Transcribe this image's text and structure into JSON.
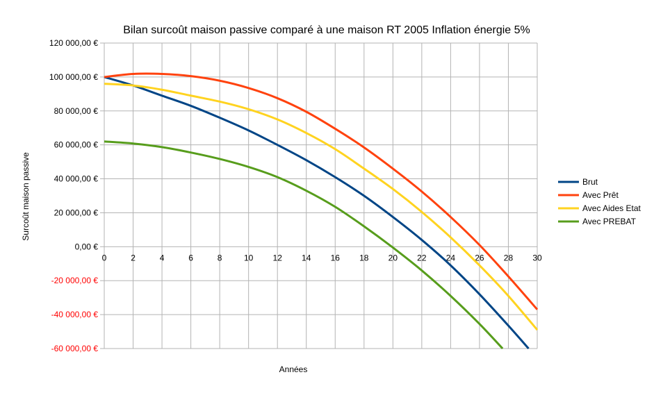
{
  "chart_data": {
    "type": "line",
    "title": "Bilan surcoût maison passive comparé à une maison RT 2005 Inflation énergie 5%",
    "xlabel": "Années",
    "ylabel": "Surcoût maison passive",
    "xlim": [
      0,
      30
    ],
    "ylim": [
      -60000,
      120000
    ],
    "x_ticks": [
      "0",
      "2",
      "4",
      "6",
      "8",
      "10",
      "12",
      "14",
      "16",
      "18",
      "20",
      "22",
      "24",
      "26",
      "28",
      "30"
    ],
    "y_ticks": [
      {
        "value": 120000,
        "label": "120 000,00 €",
        "color": "#000000"
      },
      {
        "value": 100000,
        "label": "100 000,00 €",
        "color": "#000000"
      },
      {
        "value": 80000,
        "label": "80 000,00 €",
        "color": "#000000"
      },
      {
        "value": 60000,
        "label": "60 000,00 €",
        "color": "#000000"
      },
      {
        "value": 40000,
        "label": "40 000,00 €",
        "color": "#000000"
      },
      {
        "value": 20000,
        "label": "20 000,00 €",
        "color": "#000000"
      },
      {
        "value": 0,
        "label": "0,00 €",
        "color": "#000000"
      },
      {
        "value": -20000,
        "label": "-20 000,00 €",
        "color": "#ff0000"
      },
      {
        "value": -40000,
        "label": "-40 000,00 €",
        "color": "#ff0000"
      },
      {
        "value": -60000,
        "label": "-60 000,00 €",
        "color": "#ff0000"
      }
    ],
    "grid": true,
    "legend_position": "right",
    "series": [
      {
        "name": "Brut",
        "color": "#004586",
        "x": [
          0,
          2,
          4,
          6,
          8,
          10,
          12,
          14,
          16,
          18,
          20,
          22,
          24,
          26,
          28,
          29.4
        ],
        "y": [
          100000,
          95000,
          89000,
          83000,
          76000,
          68500,
          60000,
          51000,
          41000,
          30000,
          17500,
          4000,
          -11000,
          -28000,
          -46500,
          -60000
        ]
      },
      {
        "name": "Avec Prêt",
        "color": "#ff420e",
        "x": [
          0,
          2,
          4,
          6,
          8,
          10,
          12,
          14,
          16,
          18,
          20,
          22,
          24,
          26,
          28,
          30
        ],
        "y": [
          100000,
          101800,
          101800,
          100500,
          97800,
          93500,
          87500,
          79500,
          69500,
          58500,
          46000,
          32500,
          17500,
          1000,
          -17500,
          -37000
        ]
      },
      {
        "name": "Avec Aides Etat",
        "color": "#ffd320",
        "x": [
          0,
          2,
          4,
          6,
          8,
          10,
          12,
          14,
          16,
          18,
          20,
          22,
          24,
          26,
          28,
          30
        ],
        "y": [
          96000,
          95000,
          92500,
          89000,
          85500,
          81000,
          75000,
          67000,
          57500,
          46000,
          34000,
          20500,
          5500,
          -11000,
          -29000,
          -49000
        ]
      },
      {
        "name": "Avec PREBAT",
        "color": "#579d1c",
        "x": [
          0,
          2,
          4,
          6,
          8,
          10,
          12,
          14,
          16,
          18,
          20,
          22,
          24,
          26,
          27.6
        ],
        "y": [
          62000,
          60800,
          58700,
          55500,
          51700,
          47000,
          41000,
          33000,
          23500,
          12000,
          -500,
          -14000,
          -29000,
          -45500,
          -60000
        ]
      }
    ]
  }
}
